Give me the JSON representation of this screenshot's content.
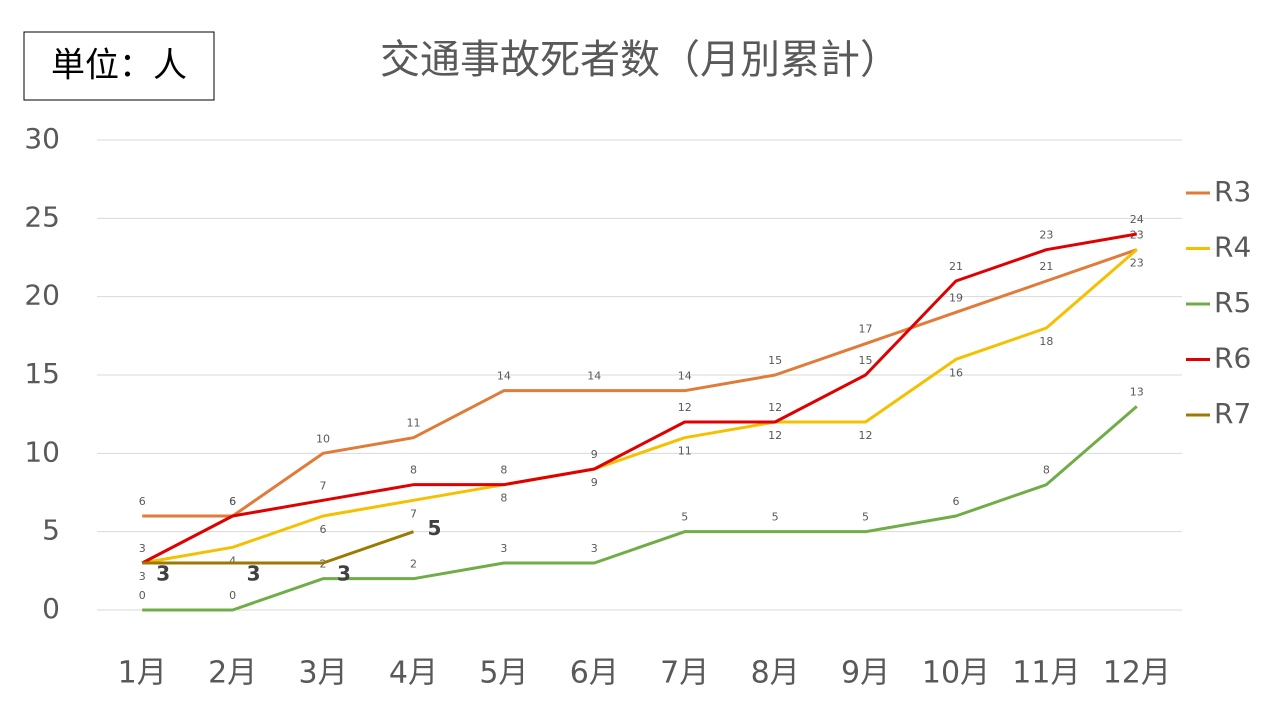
{
  "unit_label": "単位：人",
  "chart_data": {
    "type": "line",
    "title": "交通事故死者数（月別累計）",
    "categories": [
      "1月",
      "2月",
      "3月",
      "4月",
      "5月",
      "6月",
      "7月",
      "8月",
      "9月",
      "10月",
      "11月",
      "12月"
    ],
    "series": [
      {
        "name": "R3",
        "color": "#e07b39",
        "values": [
          6,
          6,
          10,
          11,
          14,
          14,
          14,
          15,
          17,
          19,
          21,
          23
        ]
      },
      {
        "name": "R4",
        "color": "#f5c000",
        "values": [
          3,
          4,
          6,
          7,
          8,
          9,
          11,
          12,
          12,
          16,
          18,
          23
        ]
      },
      {
        "name": "R5",
        "color": "#70ad47",
        "values": [
          0,
          0,
          2,
          2,
          3,
          3,
          5,
          5,
          5,
          6,
          8,
          13
        ]
      },
      {
        "name": "R6",
        "color": "#e00000",
        "values": [
          3,
          6,
          7,
          8,
          8,
          9,
          12,
          12,
          15,
          21,
          23,
          24
        ]
      },
      {
        "name": "R7",
        "color": "#9c7a00",
        "values": [
          3,
          3,
          3,
          5,
          null,
          null,
          null,
          null,
          null,
          null,
          null,
          null
        ]
      }
    ],
    "ylim": [
      0,
      30
    ],
    "yticks": [
      0,
      5,
      10,
      15,
      20,
      25,
      30
    ],
    "grid": true,
    "legend": "right"
  }
}
